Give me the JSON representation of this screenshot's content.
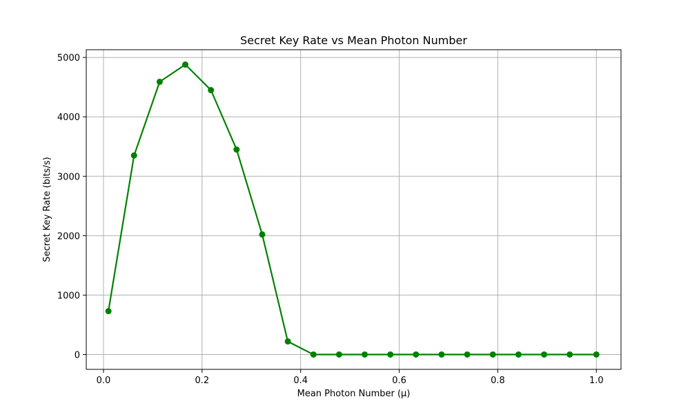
{
  "chart_data": {
    "type": "line",
    "title": "Secret Key Rate vs Mean Photon Number",
    "xlabel": "Mean Photon Number (μ)",
    "ylabel": "Secret Key Rate (bits/s)",
    "xlim": [
      -0.035,
      1.05
    ],
    "ylim": [
      -250,
      5130
    ],
    "xticks": [
      0.0,
      0.2,
      0.4,
      0.6,
      0.8,
      1.0
    ],
    "xtick_labels": [
      "0.0",
      "0.2",
      "0.4",
      "0.6",
      "0.8",
      "1.0"
    ],
    "yticks": [
      0,
      1000,
      2000,
      3000,
      4000,
      5000
    ],
    "ytick_labels": [
      "0",
      "1000",
      "2000",
      "3000",
      "4000",
      "5000"
    ],
    "grid": true,
    "series": [
      {
        "color": "#008000",
        "marker": "circle",
        "x": [
          0.01,
          0.062,
          0.114,
          0.166,
          0.218,
          0.27,
          0.322,
          0.374,
          0.426,
          0.478,
          0.53,
          0.582,
          0.634,
          0.686,
          0.738,
          0.79,
          0.842,
          0.894,
          0.946,
          1.0
        ],
        "y": [
          730,
          3350,
          4590,
          4880,
          4450,
          3450,
          2020,
          220,
          0,
          0,
          0,
          0,
          0,
          0,
          0,
          0,
          0,
          0,
          0,
          0
        ]
      }
    ]
  }
}
